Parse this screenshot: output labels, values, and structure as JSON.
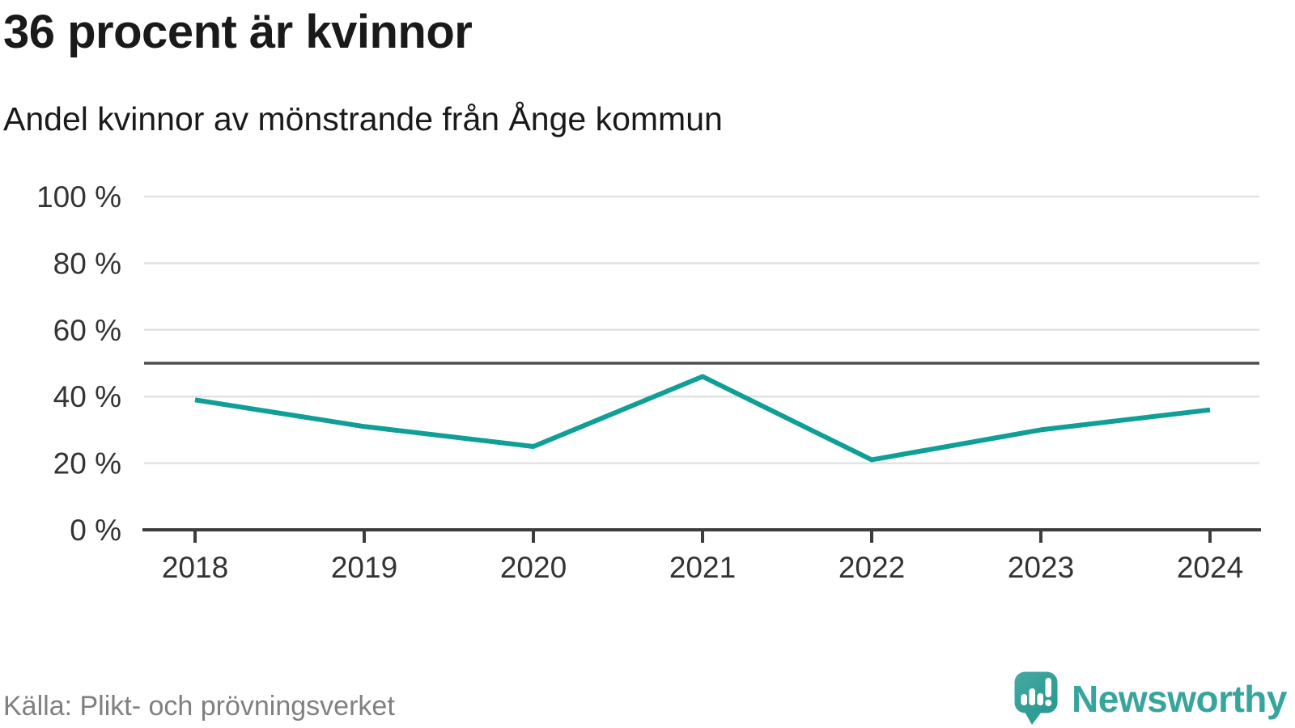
{
  "header": {
    "title": "36 procent är kvinnor",
    "subtitle": "Andel kvinnor av mönstrande från Ånge kommun"
  },
  "footer": {
    "source": "Källa: Plikt- och prövningsverket",
    "brand": "Newsworthy"
  },
  "colors": {
    "line": "#0f9f96",
    "reference_line": "#4d4d4d",
    "grid": "#e2e2e2",
    "axis": "#3d3d3d",
    "brand_teal": "#38a59c",
    "text_dark": "#1a1a1a",
    "text_gray": "#808080"
  },
  "chart_data": {
    "type": "line",
    "title": "36 procent är kvinnor",
    "subtitle": "Andel kvinnor av mönstrande från Ånge kommun",
    "x": [
      2018,
      2019,
      2020,
      2021,
      2022,
      2023,
      2024
    ],
    "series": [
      {
        "name": "Andel kvinnor av mönstrande",
        "color": "#0f9f96",
        "values": [
          39,
          31,
          25,
          46,
          21,
          30,
          36
        ]
      }
    ],
    "xlabel": "",
    "ylabel": "",
    "ylim": [
      0,
      100
    ],
    "yticks": [
      {
        "v": 0,
        "label": "0 %"
      },
      {
        "v": 20,
        "label": "20 %"
      },
      {
        "v": 40,
        "label": "40 %"
      },
      {
        "v": 60,
        "label": "60 %"
      },
      {
        "v": 80,
        "label": "80 %"
      },
      {
        "v": 100,
        "label": "100 %"
      }
    ],
    "reference_line": 50,
    "grid": true,
    "legend": false
  }
}
